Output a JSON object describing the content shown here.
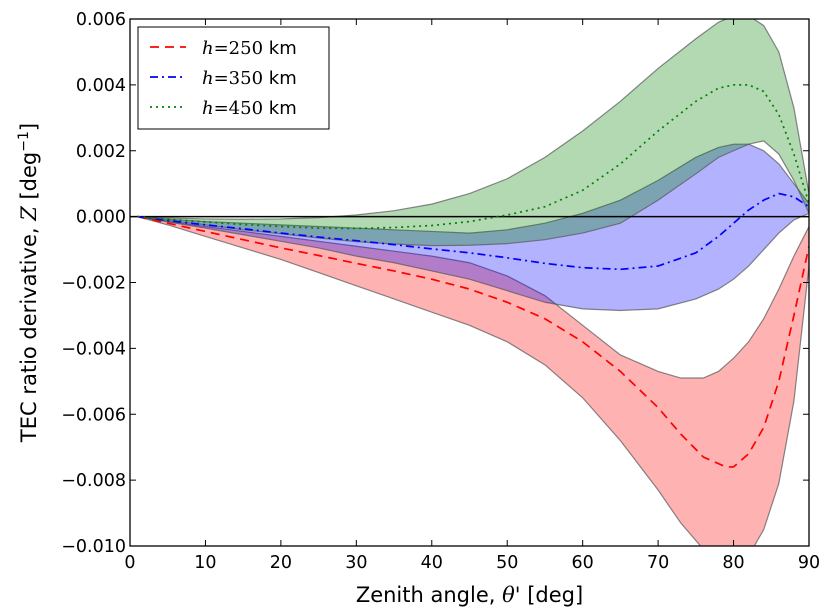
{
  "chart_data": {
    "type": "area",
    "xlabel_main": "Zenith angle, ",
    "xlabel_symbol": "θ'",
    "xlabel_unit": " [deg]",
    "ylabel_main": "TEC ratio derivative, ",
    "ylabel_symbol": "Z",
    "ylabel_unit": " [deg",
    "ylabel_exp": "−1",
    "ylabel_close": "]",
    "xlim": [
      0,
      90
    ],
    "ylim": [
      -0.01,
      0.006
    ],
    "xticks": [
      0,
      10,
      20,
      30,
      40,
      50,
      60,
      70,
      80,
      90
    ],
    "xtick_labels": [
      "0",
      "10",
      "20",
      "30",
      "40",
      "50",
      "60",
      "70",
      "80",
      "90"
    ],
    "yticks": [
      -0.01,
      -0.008,
      -0.006,
      -0.004,
      -0.002,
      0,
      0.002,
      0.004,
      0.006
    ],
    "ytick_labels": [
      "−0.010",
      "−0.008",
      "−0.006",
      "−0.004",
      "−0.002",
      "0.000",
      "0.002",
      "0.004",
      "0.006"
    ],
    "grid": false,
    "legend_position": "top-left",
    "series": [
      {
        "name_var": "h",
        "name_eq": "=250",
        "name_unit": " km",
        "color": "#ff0000",
        "fill": "#ff0000",
        "line_style": "dashed",
        "x": [
          1,
          5,
          10,
          15,
          20,
          25,
          30,
          35,
          40,
          45,
          50,
          55,
          60,
          65,
          70,
          73,
          76,
          78,
          79,
          80,
          82,
          84,
          86,
          88,
          90
        ],
        "y": [
          0,
          -0.0002,
          -0.00045,
          -0.0007,
          -0.00095,
          -0.00118,
          -0.00142,
          -0.00165,
          -0.0019,
          -0.0022,
          -0.0026,
          -0.0031,
          -0.0038,
          -0.0047,
          -0.0058,
          -0.0066,
          -0.0073,
          -0.0075,
          -0.0076,
          -0.0076,
          -0.0072,
          -0.0064,
          -0.005,
          -0.003,
          -0.0009
        ],
        "upper": [
          0,
          -0.00015,
          -0.0003,
          -0.00045,
          -0.0006,
          -0.00075,
          -0.0009,
          -0.00105,
          -0.0012,
          -0.0014,
          -0.0018,
          -0.0024,
          -0.0033,
          -0.0042,
          -0.0047,
          -0.0049,
          -0.0049,
          -0.0047,
          -0.0045,
          -0.0043,
          -0.0038,
          -0.0031,
          -0.0022,
          -0.0012,
          -0.0003
        ],
        "lower": [
          0,
          -0.00025,
          -0.0006,
          -0.00095,
          -0.0013,
          -0.0017,
          -0.0021,
          -0.0025,
          -0.0029,
          -0.0033,
          -0.0038,
          -0.0045,
          -0.0055,
          -0.0068,
          -0.0083,
          -0.0093,
          -0.0101,
          -0.0104,
          -0.0106,
          -0.0106,
          -0.0103,
          -0.0095,
          -0.0081,
          -0.0056,
          -0.0015
        ]
      },
      {
        "name_var": "h",
        "name_eq": "=350",
        "name_unit": " km",
        "color": "#0000ff",
        "fill": "#0000ff",
        "line_style": "dashdot",
        "x": [
          1,
          5,
          10,
          15,
          20,
          25,
          30,
          35,
          40,
          45,
          50,
          55,
          60,
          65,
          70,
          75,
          78,
          80,
          82,
          84,
          86,
          88,
          90
        ],
        "y": [
          0,
          -0.00012,
          -0.00025,
          -0.00037,
          -0.0005,
          -0.00062,
          -0.00073,
          -0.00085,
          -0.00098,
          -0.0011,
          -0.00125,
          -0.00142,
          -0.00155,
          -0.0016,
          -0.0015,
          -0.0011,
          -0.0006,
          -0.0002,
          0.0002,
          0.0005,
          0.0007,
          0.0006,
          0.0003
        ],
        "upper": [
          0,
          -8e-05,
          -0.00015,
          -0.0002,
          -0.00025,
          -0.0003,
          -0.00035,
          -0.0004,
          -0.00045,
          -0.0005,
          -0.0004,
          -0.0002,
          0.0001,
          0.0005,
          0.0011,
          0.0018,
          0.0021,
          0.0022,
          0.0022,
          0.002,
          0.0016,
          0.001,
          0.0004
        ],
        "lower": [
          0,
          -0.00016,
          -0.00035,
          -0.00055,
          -0.00075,
          -0.00095,
          -0.0012,
          -0.0014,
          -0.00165,
          -0.0019,
          -0.00225,
          -0.0026,
          -0.0028,
          -0.00285,
          -0.0028,
          -0.0025,
          -0.0022,
          -0.0019,
          -0.0015,
          -0.001,
          -0.0005,
          -0.0001,
          0.0001
        ]
      },
      {
        "name_var": "h",
        "name_eq": "=450",
        "name_unit": " km",
        "color": "#008000",
        "fill": "#008000",
        "line_style": "dotted",
        "x": [
          1,
          5,
          10,
          15,
          20,
          25,
          30,
          35,
          40,
          45,
          50,
          55,
          60,
          65,
          70,
          75,
          78,
          80,
          82,
          84,
          86,
          88,
          90
        ],
        "y": [
          0,
          -8e-05,
          -0.00016,
          -0.00024,
          -0.0003,
          -0.00035,
          -0.00036,
          -0.00033,
          -0.00027,
          -0.00015,
          5e-05,
          0.0003,
          0.0008,
          0.0016,
          0.0026,
          0.0035,
          0.0039,
          0.004,
          0.004,
          0.0038,
          0.0031,
          0.0019,
          0.0004
        ],
        "upper": [
          0,
          -4e-05,
          -7e-05,
          -8e-05,
          -7e-05,
          -3e-05,
          5e-05,
          0.00018,
          0.00038,
          0.0007,
          0.00115,
          0.0018,
          0.0026,
          0.0035,
          0.0045,
          0.0054,
          0.0059,
          0.0061,
          0.0061,
          0.0058,
          0.005,
          0.0033,
          0.0007
        ],
        "lower": [
          0,
          -0.00012,
          -0.00025,
          -0.0004,
          -0.00052,
          -0.00065,
          -0.00076,
          -0.00083,
          -0.00088,
          -0.00087,
          -0.00082,
          -0.0007,
          -0.0005,
          -0.0002,
          0.0005,
          0.0013,
          0.0018,
          0.002,
          0.0022,
          0.0023,
          0.0019,
          0.0011,
          0.0001
        ]
      }
    ]
  }
}
